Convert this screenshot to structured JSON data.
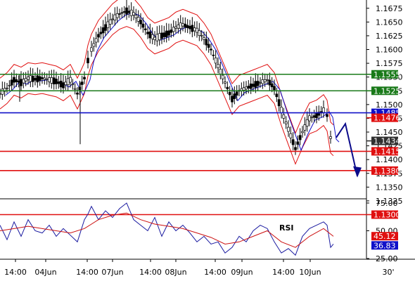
{
  "chart_data": [
    {
      "type": "candlestick",
      "panel": "price",
      "ylim": [
        1.133,
        1.169
      ],
      "y_ticks": [
        "1.1675",
        "1.1650",
        "1.1625",
        "1.1600",
        "1.1575",
        "1.1550",
        "1.1525",
        "1.1500",
        "1.1475",
        "1.1450",
        "1.1425",
        "1.1400",
        "1.1375",
        "1.1350",
        "1.1325"
      ],
      "x_ticks": [
        "14:00",
        "04Jun",
        "14:00",
        "07Jun",
        "14:00",
        "08Jun",
        "14:00",
        "09Jun",
        "14:00",
        "10Jun"
      ],
      "interval_label": "30'",
      "levels": [
        {
          "label": "1.1555",
          "value": 1.1555,
          "color": "#1a7a1a"
        },
        {
          "label": "1.1525",
          "value": 1.1525,
          "color": "#1a7a1a"
        },
        {
          "label": "1.1485",
          "value": 1.1485,
          "color": "#1010c8"
        },
        {
          "label": "1.1476",
          "value": 1.1476,
          "color": "#e01010"
        },
        {
          "label": "1.1434",
          "value": 1.1434,
          "color": "#303030"
        },
        {
          "label": "1.1415",
          "value": 1.1415,
          "color": "#e01010"
        },
        {
          "label": "1.1380",
          "value": 1.138,
          "color": "#e01010"
        },
        {
          "label": "1.1300",
          "value": 1.13,
          "color": "#e01010"
        }
      ],
      "close_path": [
        [
          0,
          1.152
        ],
        [
          10,
          1.153
        ],
        [
          20,
          1.1545
        ],
        [
          30,
          1.154
        ],
        [
          40,
          1.1548
        ],
        [
          50,
          1.1546
        ],
        [
          60,
          1.1548
        ],
        [
          70,
          1.1545
        ],
        [
          80,
          1.1542
        ],
        [
          90,
          1.1535
        ],
        [
          100,
          1.1545
        ],
        [
          110,
          1.152
        ],
        [
          120,
          1.1548
        ],
        [
          125,
          1.158
        ],
        [
          130,
          1.16
        ],
        [
          140,
          1.1625
        ],
        [
          150,
          1.164
        ],
        [
          160,
          1.1655
        ],
        [
          170,
          1.1665
        ],
        [
          180,
          1.167
        ],
        [
          190,
          1.1665
        ],
        [
          200,
          1.165
        ],
        [
          210,
          1.163
        ],
        [
          220,
          1.162
        ],
        [
          230,
          1.1625
        ],
        [
          240,
          1.163
        ],
        [
          250,
          1.164
        ],
        [
          260,
          1.1645
        ],
        [
          270,
          1.164
        ],
        [
          280,
          1.1635
        ],
        [
          290,
          1.162
        ],
        [
          300,
          1.16
        ],
        [
          310,
          1.157
        ],
        [
          320,
          1.154
        ],
        [
          330,
          1.151
        ],
        [
          340,
          1.1525
        ],
        [
          350,
          1.153
        ],
        [
          360,
          1.1535
        ],
        [
          370,
          1.154
        ],
        [
          380,
          1.1545
        ],
        [
          390,
          1.153
        ],
        [
          400,
          1.149
        ],
        [
          410,
          1.1455
        ],
        [
          420,
          1.142
        ],
        [
          430,
          1.145
        ],
        [
          440,
          1.1475
        ],
        [
          450,
          1.148
        ],
        [
          460,
          1.149
        ],
        [
          465,
          1.148
        ],
        [
          470,
          1.144
        ],
        [
          474,
          1.1435
        ]
      ],
      "forecast_arrow": [
        [
          478,
          1.144
        ],
        [
          491,
          1.1465
        ],
        [
          508,
          1.137
        ]
      ]
    },
    {
      "type": "line",
      "panel": "rsi",
      "label": "RSI",
      "ylim": [
        25,
        75
      ],
      "y_ticks": [
        "75.00",
        "50.00",
        "25.00"
      ],
      "values_shown": [
        {
          "label": "45.12",
          "value": 45.12,
          "color": "#e01010"
        },
        {
          "label": "36.83",
          "value": 36.83,
          "color": "#1010c8"
        }
      ],
      "series": [
        {
          "color": "#1a1aa0",
          "points": [
            [
              0,
              55
            ],
            [
              10,
              42
            ],
            [
              20,
              58
            ],
            [
              30,
              45
            ],
            [
              40,
              60
            ],
            [
              50,
              50
            ],
            [
              60,
              48
            ],
            [
              70,
              55
            ],
            [
              80,
              45
            ],
            [
              90,
              52
            ],
            [
              100,
              46
            ],
            [
              110,
              40
            ],
            [
              120,
              60
            ],
            [
              125,
              65
            ],
            [
              130,
              72
            ],
            [
              140,
              60
            ],
            [
              150,
              68
            ],
            [
              160,
              62
            ],
            [
              170,
              70
            ],
            [
              180,
              75
            ],
            [
              190,
              60
            ],
            [
              200,
              55
            ],
            [
              210,
              50
            ],
            [
              220,
              62
            ],
            [
              230,
              45
            ],
            [
              240,
              58
            ],
            [
              250,
              50
            ],
            [
              260,
              55
            ],
            [
              270,
              48
            ],
            [
              280,
              40
            ],
            [
              290,
              45
            ],
            [
              300,
              38
            ],
            [
              310,
              40
            ],
            [
              320,
              30
            ],
            [
              330,
              35
            ],
            [
              340,
              45
            ],
            [
              350,
              40
            ],
            [
              360,
              50
            ],
            [
              370,
              55
            ],
            [
              380,
              52
            ],
            [
              390,
              40
            ],
            [
              400,
              30
            ],
            [
              410,
              34
            ],
            [
              420,
              28
            ],
            [
              430,
              45
            ],
            [
              440,
              52
            ],
            [
              450,
              55
            ],
            [
              460,
              58
            ],
            [
              465,
              55
            ],
            [
              470,
              35
            ],
            [
              474,
              38
            ]
          ]
        },
        {
          "color": "#cc1010",
          "points": [
            [
              0,
              50
            ],
            [
              20,
              52
            ],
            [
              40,
              54
            ],
            [
              60,
              52
            ],
            [
              80,
              50
            ],
            [
              100,
              48
            ],
            [
              120,
              52
            ],
            [
              140,
              60
            ],
            [
              160,
              64
            ],
            [
              180,
              66
            ],
            [
              200,
              60
            ],
            [
              220,
              56
            ],
            [
              240,
              54
            ],
            [
              260,
              52
            ],
            [
              280,
              48
            ],
            [
              300,
              44
            ],
            [
              320,
              38
            ],
            [
              340,
              40
            ],
            [
              360,
              45
            ],
            [
              380,
              50
            ],
            [
              400,
              40
            ],
            [
              420,
              35
            ],
            [
              440,
              45
            ],
            [
              460,
              52
            ],
            [
              474,
              45
            ]
          ]
        }
      ]
    }
  ]
}
